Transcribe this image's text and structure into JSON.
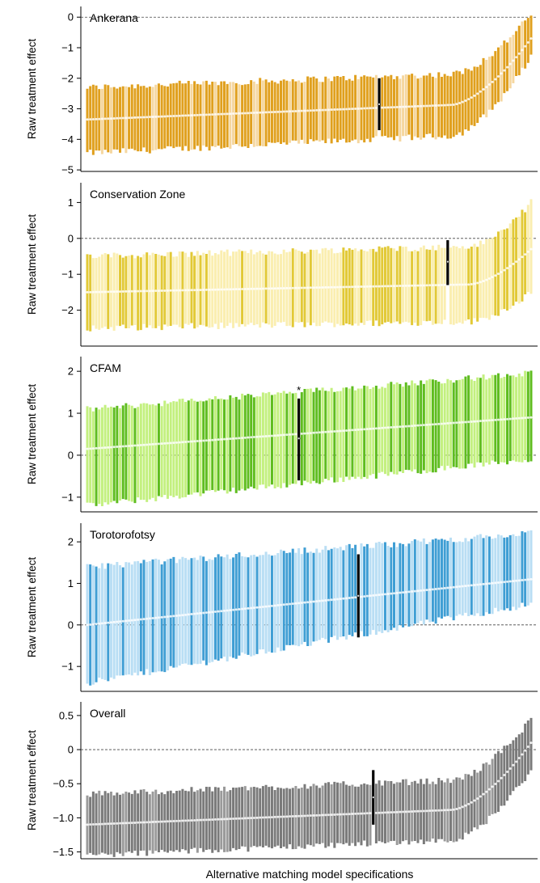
{
  "figure": {
    "xlabel": "Alternative matching model specifications"
  },
  "chart_data": [
    {
      "type": "errorbar",
      "title": "Ankerana",
      "ylabel": "Raw treatment effect",
      "ylim": [
        -5.05,
        0.35
      ],
      "yticks": [
        0,
        -1,
        -2,
        -3,
        -4,
        -5
      ],
      "ytick_labels": [
        "0",
        "−1",
        "−2",
        "−3",
        "−4",
        "−5"
      ],
      "reference_line": 0,
      "n_specs": 150,
      "estimates": {
        "start": -3.35,
        "end": -0.7,
        "shape": "rise_at_end",
        "knee": 0.82
      },
      "lower": {
        "start": -4.45,
        "end": -1.3
      },
      "upper": {
        "start": -2.3,
        "end": 0.1
      },
      "colors": {
        "dark": "#e0a01e",
        "light": "#f5d7a0",
        "highlight": "#000000"
      },
      "highlight": {
        "estimate": -2.85,
        "lower": -3.7,
        "upper": -2.0
      }
    },
    {
      "type": "errorbar",
      "title": "Conservation Zone",
      "ylabel": "Raw treatment effect",
      "ylim": [
        -3.0,
        1.55
      ],
      "yticks": [
        1,
        0,
        -1,
        -2
      ],
      "ytick_labels": [
        "1",
        "0",
        "−1",
        "−2"
      ],
      "reference_line": 0,
      "n_specs": 150,
      "estimates": {
        "start": -1.5,
        "end": -0.3,
        "shape": "rise_at_end",
        "knee": 0.86
      },
      "lower": {
        "start": -2.5,
        "end": -1.5
      },
      "upper": {
        "start": -0.5,
        "end": 1.0
      },
      "colors": {
        "dark": "#e2c936",
        "light": "#faeeb0",
        "highlight": "#000000"
      },
      "highlight": {
        "estimate": -0.65,
        "lower": -1.3,
        "upper": -0.05
      }
    },
    {
      "type": "errorbar",
      "title": "CFAM",
      "ylabel": "Raw treatment effect",
      "ylim": [
        -1.35,
        2.35
      ],
      "yticks": [
        2,
        1,
        0,
        -1
      ],
      "ytick_labels": [
        "2",
        "1",
        "0",
        "−1"
      ],
      "reference_line": 0,
      "n_specs": 150,
      "estimates": {
        "start": 0.15,
        "end": 0.9,
        "shape": "linear"
      },
      "lower": {
        "start": -1.2,
        "end": -0.1
      },
      "upper": {
        "start": 1.1,
        "end": 1.95
      },
      "colors": {
        "dark": "#5fbd1f",
        "light": "#c3f07f",
        "highlight": "#000000"
      },
      "highlight": {
        "estimate": 0.4,
        "lower": -0.6,
        "upper": 1.35
      },
      "annotation": "*"
    },
    {
      "type": "errorbar",
      "title": "Torotorofotsy",
      "ylabel": "Raw treatment effect",
      "ylim": [
        -1.6,
        2.45
      ],
      "yticks": [
        2,
        1,
        0,
        -1
      ],
      "ytick_labels": [
        "2",
        "1",
        "0",
        "−1"
      ],
      "reference_line": 0,
      "n_specs": 150,
      "estimates": {
        "start": 0.0,
        "end": 1.1,
        "shape": "linear"
      },
      "lower": {
        "start": -1.4,
        "end": 0.5
      },
      "upper": {
        "start": 1.4,
        "end": 2.2
      },
      "colors": {
        "dark": "#3f9ed4",
        "light": "#b9def4",
        "highlight": "#000000"
      },
      "highlight": {
        "estimate": 0.7,
        "lower": -0.3,
        "upper": 1.7
      }
    },
    {
      "type": "errorbar",
      "title": "Overall",
      "ylabel": "Raw treatment effect",
      "ylim": [
        -1.6,
        0.7
      ],
      "yticks": [
        0.5,
        0,
        -0.5,
        -1.0,
        -1.5
      ],
      "ytick_labels": [
        "0.5",
        "0",
        "−0.5",
        "−1.0",
        "−1.5"
      ],
      "reference_line": 0,
      "n_specs": 150,
      "estimates": {
        "start": -1.1,
        "end": 0.1,
        "shape": "rise_at_end",
        "knee": 0.82
      },
      "lower": {
        "start": -1.55,
        "end": -0.3
      },
      "upper": {
        "start": -0.65,
        "end": 0.45
      },
      "colors": {
        "dark": "#7a7a7a",
        "light": "#9a9a9a",
        "highlight": "#000000"
      },
      "highlight": {
        "estimate": -0.7,
        "lower": -1.1,
        "upper": -0.3
      }
    }
  ]
}
